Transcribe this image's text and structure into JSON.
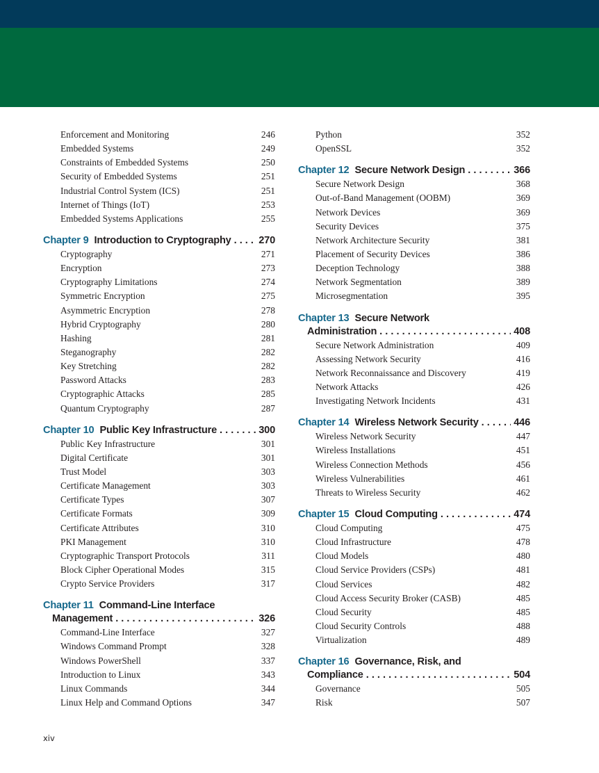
{
  "colors": {
    "top_band": "#023a5a",
    "green_band": "#00693e",
    "chapter_label": "#17698c"
  },
  "left_column": [
    {
      "type": "entries",
      "items": [
        {
          "title": "Enforcement and Monitoring",
          "page": "246"
        },
        {
          "title": "Embedded Systems",
          "page": "249"
        },
        {
          "title": "Constraints of Embedded Systems",
          "page": "250"
        },
        {
          "title": "Security of Embedded Systems",
          "page": "251"
        },
        {
          "title": "Industrial Control System (ICS)",
          "page": "251"
        },
        {
          "title": "Internet of Things (IoT)",
          "page": "253"
        },
        {
          "title": "Embedded Systems Applications",
          "page": "255"
        }
      ]
    },
    {
      "type": "chapter",
      "label": "Chapter 9",
      "title": "Introduction to Cryptography",
      "page": "270",
      "items": [
        {
          "title": "Cryptography",
          "page": "271"
        },
        {
          "title": "Encryption",
          "page": "273"
        },
        {
          "title": "Cryptography Limitations",
          "page": "274"
        },
        {
          "title": "Symmetric Encryption",
          "page": "275"
        },
        {
          "title": "Asymmetric Encryption",
          "page": "278"
        },
        {
          "title": "Hybrid Cryptography",
          "page": "280"
        },
        {
          "title": "Hashing",
          "page": "281"
        },
        {
          "title": "Steganography",
          "page": "282"
        },
        {
          "title": "Key Stretching",
          "page": "282"
        },
        {
          "title": "Password Attacks",
          "page": "283"
        },
        {
          "title": "Cryptographic Attacks",
          "page": "285"
        },
        {
          "title": "Quantum Cryptography",
          "page": "287"
        }
      ]
    },
    {
      "type": "chapter",
      "label": "Chapter 10",
      "title": "Public Key Infrastructure",
      "page": "300",
      "items": [
        {
          "title": "Public Key Infrastructure",
          "page": "301"
        },
        {
          "title": "Digital Certificate",
          "page": "301"
        },
        {
          "title": "Trust Model",
          "page": "303"
        },
        {
          "title": "Certificate Management",
          "page": "303"
        },
        {
          "title": "Certificate Types",
          "page": "307"
        },
        {
          "title": "Certificate Formats",
          "page": "309"
        },
        {
          "title": "Certificate Attributes",
          "page": "310"
        },
        {
          "title": "PKI Management",
          "page": "310"
        },
        {
          "title": "Cryptographic Transport Protocols",
          "page": "311"
        },
        {
          "title": "Block Cipher Operational Modes",
          "page": "315"
        },
        {
          "title": "Crypto Service Providers",
          "page": "317"
        }
      ]
    },
    {
      "type": "chapter",
      "label": "Chapter 11",
      "title": "Command-Line Interface",
      "title_line2": "Management",
      "page": "326",
      "items": [
        {
          "title": "Command-Line Interface",
          "page": "327"
        },
        {
          "title": "Windows Command Prompt",
          "page": "328"
        },
        {
          "title": "Windows PowerShell",
          "page": "337"
        },
        {
          "title": "Introduction to Linux",
          "page": "343"
        },
        {
          "title": "Linux Commands",
          "page": "344"
        },
        {
          "title": "Linux Help and Command Options",
          "page": "347"
        }
      ]
    }
  ],
  "right_column": [
    {
      "type": "entries",
      "items": [
        {
          "title": "Python",
          "page": "352"
        },
        {
          "title": "OpenSSL",
          "page": "352"
        }
      ]
    },
    {
      "type": "chapter",
      "label": "Chapter 12",
      "title": "Secure Network Design",
      "page": "366",
      "items": [
        {
          "title": "Secure Network Design",
          "page": "368"
        },
        {
          "title": "Out-of-Band Management (OOBM)",
          "page": "369"
        },
        {
          "title": "Network Devices",
          "page": "369"
        },
        {
          "title": "Security Devices",
          "page": "375"
        },
        {
          "title": "Network Architecture Security",
          "page": "381"
        },
        {
          "title": "Placement of Security Devices",
          "page": "386"
        },
        {
          "title": "Deception Technology",
          "page": "388"
        },
        {
          "title": "Network Segmentation",
          "page": "389"
        },
        {
          "title": "Microsegmentation",
          "page": "395"
        }
      ]
    },
    {
      "type": "chapter",
      "label": "Chapter 13",
      "title": "Secure Network",
      "title_line2": "Administration",
      "page": "408",
      "items": [
        {
          "title": "Secure Network Administration",
          "page": "409"
        },
        {
          "title": "Assessing Network Security",
          "page": "416"
        },
        {
          "title": "Network Reconnaissance and Discovery",
          "page": "419"
        },
        {
          "title": "Network Attacks",
          "page": "426"
        },
        {
          "title": "Investigating Network Incidents",
          "page": "431"
        }
      ]
    },
    {
      "type": "chapter",
      "label": "Chapter 14",
      "title": "Wireless Network Security",
      "page": "446",
      "items": [
        {
          "title": "Wireless Network Security",
          "page": "447"
        },
        {
          "title": "Wireless Installations",
          "page": "451"
        },
        {
          "title": "Wireless Connection Methods",
          "page": "456"
        },
        {
          "title": "Wireless Vulnerabilities",
          "page": "461"
        },
        {
          "title": "Threats to Wireless Security",
          "page": "462"
        }
      ]
    },
    {
      "type": "chapter",
      "label": "Chapter 15",
      "title": "Cloud Computing",
      "page": "474",
      "items": [
        {
          "title": "Cloud Computing",
          "page": "475"
        },
        {
          "title": "Cloud Infrastructure",
          "page": "478"
        },
        {
          "title": "Cloud Models",
          "page": "480"
        },
        {
          "title": "Cloud Service Providers (CSPs)",
          "page": "481"
        },
        {
          "title": "Cloud Services",
          "page": "482"
        },
        {
          "title": "Cloud Access Security Broker (CASB)",
          "page": "485"
        },
        {
          "title": "Cloud Security",
          "page": "485"
        },
        {
          "title": "Cloud Security Controls",
          "page": "488"
        },
        {
          "title": "Virtualization",
          "page": "489"
        }
      ]
    },
    {
      "type": "chapter",
      "label": "Chapter 16",
      "title": "Governance, Risk, and",
      "title_line2": "Compliance",
      "page": "504",
      "items": [
        {
          "title": "Governance",
          "page": "505"
        },
        {
          "title": "Risk",
          "page": "507"
        }
      ]
    }
  ],
  "footer": {
    "page_number": "xiv"
  }
}
